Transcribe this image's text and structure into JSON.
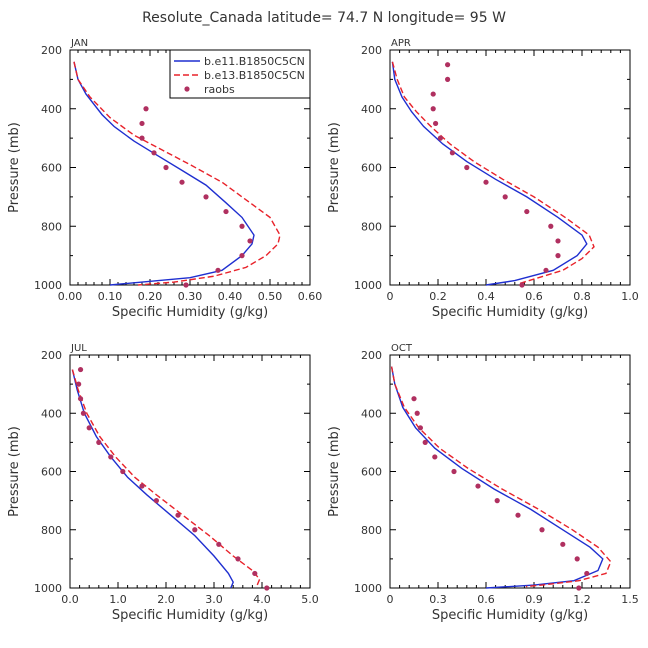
{
  "figure": {
    "title": "Resolute_Canada   latitude= 74.7 N longitude= 95 W"
  },
  "colors": {
    "series1": "#1f2fd0",
    "series2": "#e8222a",
    "points": "#b03060"
  },
  "chart_data": [
    {
      "type": "line",
      "panel_label": "JAN",
      "xlabel": "Specific Humidity (g/kg)",
      "ylabel": "Pressure (mb)",
      "xlim": [
        0,
        0.6
      ],
      "ylim": [
        1000,
        200
      ],
      "x_ticks": [
        "0.00",
        "0.10",
        "0.20",
        "0.30",
        "0.40",
        "0.50",
        "0.60"
      ],
      "y_ticks": [
        "200",
        "400",
        "600",
        "800",
        "1000"
      ],
      "legend": {
        "placement": "top-right",
        "entries": [
          "b.e11.B1850C5CN",
          "b.e13.B1850C5CN",
          "raobs"
        ]
      },
      "series": [
        {
          "name": "b.e11.B1850C5CN",
          "style": "solid",
          "points": [
            [
              0.01,
              240
            ],
            [
              0.02,
              300
            ],
            [
              0.04,
              350
            ],
            [
              0.08,
              420
            ],
            [
              0.11,
              460
            ],
            [
              0.16,
              510
            ],
            [
              0.22,
              560
            ],
            [
              0.28,
              610
            ],
            [
              0.34,
              660
            ],
            [
              0.39,
              720
            ],
            [
              0.43,
              770
            ],
            [
              0.46,
              830
            ],
            [
              0.455,
              860
            ],
            [
              0.43,
              900
            ],
            [
              0.38,
              950
            ],
            [
              0.3,
              975
            ],
            [
              0.1,
              1000
            ]
          ]
        },
        {
          "name": "b.e13.B1850C5CN",
          "style": "dashed",
          "points": [
            [
              0.01,
              240
            ],
            [
              0.02,
              300
            ],
            [
              0.05,
              360
            ],
            [
              0.1,
              430
            ],
            [
              0.16,
              490
            ],
            [
              0.23,
              540
            ],
            [
              0.3,
              590
            ],
            [
              0.38,
              650
            ],
            [
              0.44,
              710
            ],
            [
              0.5,
              770
            ],
            [
              0.525,
              830
            ],
            [
              0.52,
              860
            ],
            [
              0.49,
              900
            ],
            [
              0.44,
              940
            ],
            [
              0.36,
              970
            ],
            [
              0.26,
              990
            ],
            [
              0.17,
              1000
            ]
          ]
        },
        {
          "name": "raobs",
          "style": "points",
          "points": [
            [
              0.19,
              400
            ],
            [
              0.18,
              450
            ],
            [
              0.18,
              500
            ],
            [
              0.21,
              550
            ],
            [
              0.24,
              600
            ],
            [
              0.28,
              650
            ],
            [
              0.34,
              700
            ],
            [
              0.39,
              750
            ],
            [
              0.43,
              800
            ],
            [
              0.45,
              850
            ],
            [
              0.43,
              900
            ],
            [
              0.37,
              950
            ],
            [
              0.29,
              1000
            ]
          ]
        }
      ]
    },
    {
      "type": "line",
      "panel_label": "APR",
      "xlabel": "Specific Humidity (g/kg)",
      "ylabel": "Pressure (mb)",
      "xlim": [
        0,
        1.0
      ],
      "ylim": [
        1000,
        200
      ],
      "x_ticks": [
        "0",
        "0.2",
        "0.4",
        "0.6",
        "0.8",
        "1.0"
      ],
      "y_ticks": [
        "200",
        "400",
        "600",
        "800",
        "1000"
      ],
      "series": [
        {
          "name": "b.e11.B1850C5CN",
          "style": "solid",
          "points": [
            [
              0.01,
              240
            ],
            [
              0.02,
              300
            ],
            [
              0.05,
              360
            ],
            [
              0.09,
              410
            ],
            [
              0.14,
              460
            ],
            [
              0.22,
              520
            ],
            [
              0.32,
              580
            ],
            [
              0.44,
              640
            ],
            [
              0.57,
              700
            ],
            [
              0.7,
              770
            ],
            [
              0.8,
              830
            ],
            [
              0.82,
              860
            ],
            [
              0.78,
              900
            ],
            [
              0.68,
              950
            ],
            [
              0.52,
              985
            ],
            [
              0.4,
              1000
            ]
          ]
        },
        {
          "name": "b.e13.B1850C5CN",
          "style": "dashed",
          "points": [
            [
              0.01,
              240
            ],
            [
              0.03,
              300
            ],
            [
              0.06,
              360
            ],
            [
              0.11,
              410
            ],
            [
              0.17,
              460
            ],
            [
              0.25,
              520
            ],
            [
              0.35,
              580
            ],
            [
              0.47,
              640
            ],
            [
              0.6,
              700
            ],
            [
              0.73,
              770
            ],
            [
              0.83,
              830
            ],
            [
              0.85,
              870
            ],
            [
              0.8,
              910
            ],
            [
              0.72,
              950
            ],
            [
              0.6,
              980
            ],
            [
              0.54,
              995
            ]
          ]
        },
        {
          "name": "raobs",
          "style": "points",
          "points": [
            [
              0.24,
              250
            ],
            [
              0.24,
              300
            ],
            [
              0.18,
              350
            ],
            [
              0.18,
              400
            ],
            [
              0.19,
              450
            ],
            [
              0.21,
              500
            ],
            [
              0.26,
              550
            ],
            [
              0.32,
              600
            ],
            [
              0.4,
              650
            ],
            [
              0.48,
              700
            ],
            [
              0.57,
              750
            ],
            [
              0.67,
              800
            ],
            [
              0.7,
              850
            ],
            [
              0.7,
              900
            ],
            [
              0.65,
              950
            ],
            [
              0.55,
              1000
            ]
          ]
        }
      ]
    },
    {
      "type": "line",
      "panel_label": "JUL",
      "xlabel": "Specific Humidity (g/kg)",
      "ylabel": "Pressure (mb)",
      "xlim": [
        0,
        5.0
      ],
      "ylim": [
        1000,
        200
      ],
      "x_ticks": [
        "0.0",
        "1.0",
        "2.0",
        "3.0",
        "4.0",
        "5.0"
      ],
      "y_ticks": [
        "200",
        "400",
        "600",
        "800",
        "1000"
      ],
      "series": [
        {
          "name": "b.e11.B1850C5CN",
          "style": "solid",
          "points": [
            [
              0.05,
              250
            ],
            [
              0.15,
              320
            ],
            [
              0.3,
              400
            ],
            [
              0.55,
              480
            ],
            [
              0.85,
              550
            ],
            [
              1.2,
              620
            ],
            [
              1.6,
              680
            ],
            [
              2.1,
              750
            ],
            [
              2.6,
              820
            ],
            [
              3.0,
              890
            ],
            [
              3.3,
              950
            ],
            [
              3.4,
              980
            ],
            [
              3.35,
              1000
            ]
          ]
        },
        {
          "name": "b.e13.B1850C5CN",
          "style": "dashed",
          "points": [
            [
              0.05,
              250
            ],
            [
              0.17,
              320
            ],
            [
              0.35,
              400
            ],
            [
              0.62,
              480
            ],
            [
              0.95,
              550
            ],
            [
              1.35,
              620
            ],
            [
              1.8,
              680
            ],
            [
              2.35,
              750
            ],
            [
              2.9,
              820
            ],
            [
              3.4,
              890
            ],
            [
              3.8,
              940
            ],
            [
              3.95,
              970
            ],
            [
              3.9,
              990
            ]
          ]
        },
        {
          "name": "raobs",
          "style": "points",
          "points": [
            [
              0.22,
              250
            ],
            [
              0.18,
              300
            ],
            [
              0.22,
              350
            ],
            [
              0.28,
              400
            ],
            [
              0.4,
              450
            ],
            [
              0.6,
              500
            ],
            [
              0.85,
              550
            ],
            [
              1.1,
              600
            ],
            [
              1.5,
              650
            ],
            [
              1.8,
              700
            ],
            [
              2.25,
              750
            ],
            [
              2.6,
              800
            ],
            [
              3.1,
              850
            ],
            [
              3.5,
              900
            ],
            [
              3.85,
              950
            ],
            [
              4.1,
              1000
            ]
          ]
        }
      ]
    },
    {
      "type": "line",
      "panel_label": "OCT",
      "xlabel": "Specific Humidity (g/kg)",
      "ylabel": "Pressure (mb)",
      "xlim": [
        0,
        1.5
      ],
      "ylim": [
        1000,
        200
      ],
      "x_ticks": [
        "0",
        "0.3",
        "0.6",
        "0.9",
        "1.2",
        "1.5"
      ],
      "y_ticks": [
        "200",
        "400",
        "600",
        "800",
        "1000"
      ],
      "series": [
        {
          "name": "b.e11.B1850C5CN",
          "style": "solid",
          "points": [
            [
              0.01,
              240
            ],
            [
              0.03,
              300
            ],
            [
              0.08,
              380
            ],
            [
              0.16,
              450
            ],
            [
              0.28,
              520
            ],
            [
              0.45,
              590
            ],
            [
              0.65,
              660
            ],
            [
              0.88,
              730
            ],
            [
              1.08,
              800
            ],
            [
              1.25,
              860
            ],
            [
              1.33,
              900
            ],
            [
              1.3,
              940
            ],
            [
              1.15,
              975
            ],
            [
              0.9,
              990
            ],
            [
              0.6,
              1000
            ]
          ]
        },
        {
          "name": "b.e13.B1850C5CN",
          "style": "dashed",
          "points": [
            [
              0.01,
              240
            ],
            [
              0.03,
              300
            ],
            [
              0.09,
              380
            ],
            [
              0.18,
              450
            ],
            [
              0.31,
              520
            ],
            [
              0.49,
              590
            ],
            [
              0.7,
              660
            ],
            [
              0.93,
              730
            ],
            [
              1.14,
              800
            ],
            [
              1.3,
              860
            ],
            [
              1.38,
              910
            ],
            [
              1.35,
              950
            ],
            [
              1.18,
              975
            ],
            [
              0.95,
              990
            ],
            [
              0.85,
              995
            ]
          ]
        },
        {
          "name": "raobs",
          "style": "points",
          "points": [
            [
              0.15,
              350
            ],
            [
              0.17,
              400
            ],
            [
              0.19,
              450
            ],
            [
              0.22,
              500
            ],
            [
              0.28,
              550
            ],
            [
              0.4,
              600
            ],
            [
              0.55,
              650
            ],
            [
              0.67,
              700
            ],
            [
              0.8,
              750
            ],
            [
              0.95,
              800
            ],
            [
              1.08,
              850
            ],
            [
              1.17,
              900
            ],
            [
              1.23,
              950
            ],
            [
              1.18,
              1000
            ]
          ]
        }
      ]
    }
  ]
}
